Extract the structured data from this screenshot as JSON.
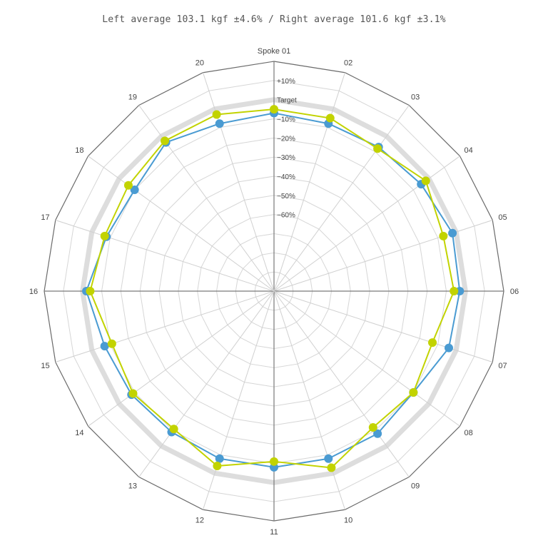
{
  "chart_data": {
    "type": "radar",
    "title": "Left average 103.1 kgf ±4.6% / Right average 101.6 kgf ±3.1%",
    "categories": [
      "Spoke 01",
      "02",
      "03",
      "04",
      "05",
      "06",
      "07",
      "08",
      "09",
      "10",
      "11",
      "12",
      "13",
      "14",
      "15",
      "16",
      "17",
      "18",
      "19",
      "20"
    ],
    "ring_labels": [
      "+10%",
      "Target",
      "-10%",
      "-20%",
      "-30%",
      "-40%",
      "-50%",
      "-60%"
    ],
    "scale": {
      "min_percent": -100,
      "max_percent": 20,
      "step_percent": 10
    },
    "grid": true,
    "series": [
      {
        "color": "#4a9bd2",
        "values": [
          -7,
          -8,
          -7,
          -5,
          -2,
          -3,
          -4,
          -10,
          -8,
          -8,
          -8,
          -8,
          -9,
          -8,
          -7,
          -2,
          -8,
          -10,
          -4,
          -8
        ]
      },
      {
        "color": "#c2d300",
        "values": [
          -5,
          -5,
          -8,
          -2,
          -7,
          -6,
          -13,
          -10,
          -12,
          -3,
          -11,
          -4,
          -11,
          -9,
          -11,
          -4,
          -7,
          -6,
          -3,
          -3
        ]
      }
    ],
    "target_band_color": "#dddddd"
  }
}
